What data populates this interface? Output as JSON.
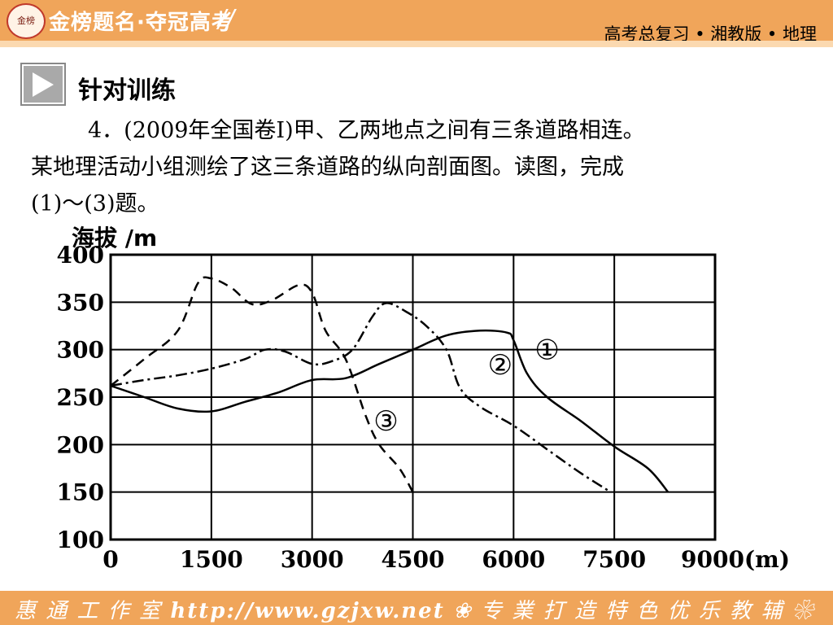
{
  "header": {
    "logo_text": "金榜",
    "brand": "金榜题名·夺冠高考",
    "series_title": "高考总复习 • 湘教版 • 地理"
  },
  "section_title": "针对训练",
  "question": {
    "line1": "4．(2009年全国卷Ⅰ)甲、乙两地点之间有三条道路相连。",
    "line2": "某地理活动小组测绘了这三条道路的纵向剖面图。读图，完成",
    "line3": "(1)～(3)题。"
  },
  "footer": {
    "studio": "惠 通 工 作 室",
    "url": "http://www.gzjxw.net",
    "slogan": "专 業 打 造 特 色 优 乐 教 辅"
  },
  "colors": {
    "bar": "#f0a55a",
    "line": "#000000"
  },
  "chart_data": {
    "type": "line",
    "ylabel": "海拔 /m",
    "xunit": "(m)",
    "xlim": [
      0,
      9000
    ],
    "ylim": [
      100,
      400
    ],
    "xticks": [
      0,
      1500,
      3000,
      4500,
      6000,
      7500,
      9000
    ],
    "yticks": [
      100,
      150,
      200,
      250,
      300,
      350,
      400
    ],
    "grid": true,
    "series": [
      {
        "name": "①",
        "dash": "none",
        "x": [
          0,
          500,
          1000,
          1500,
          2000,
          2500,
          3000,
          3500,
          4000,
          4500,
          5000,
          5500,
          5900,
          6000,
          6200,
          6500,
          7000,
          7500,
          8000,
          8300
        ],
        "y": [
          262,
          250,
          238,
          235,
          245,
          255,
          268,
          270,
          285,
          300,
          315,
          320,
          318,
          310,
          275,
          250,
          225,
          198,
          175,
          150
        ]
      },
      {
        "name": "②",
        "dash": "14 5 3 5",
        "x": [
          0,
          500,
          1000,
          1500,
          2000,
          2300,
          2600,
          3000,
          3300,
          3600,
          3900,
          4100,
          4400,
          4700,
          5000,
          5200,
          5500,
          6000,
          6500,
          7000,
          7400
        ],
        "y": [
          262,
          268,
          273,
          280,
          290,
          300,
          298,
          285,
          288,
          300,
          335,
          349,
          340,
          325,
          300,
          260,
          240,
          220,
          195,
          170,
          152
        ]
      },
      {
        "name": "③",
        "dash": "12 8",
        "x": [
          0,
          500,
          1000,
          1300,
          1500,
          1800,
          2100,
          2400,
          2800,
          3000,
          3200,
          3500,
          3800,
          4000,
          4300,
          4500
        ],
        "y": [
          262,
          290,
          320,
          370,
          375,
          365,
          348,
          352,
          368,
          360,
          320,
          290,
          230,
          200,
          175,
          150
        ]
      }
    ],
    "curve_labels": [
      {
        "text": "①",
        "x": 6500,
        "y": 290
      },
      {
        "text": "②",
        "x": 5800,
        "y": 274
      },
      {
        "text": "③",
        "x": 4100,
        "y": 215
      }
    ]
  }
}
